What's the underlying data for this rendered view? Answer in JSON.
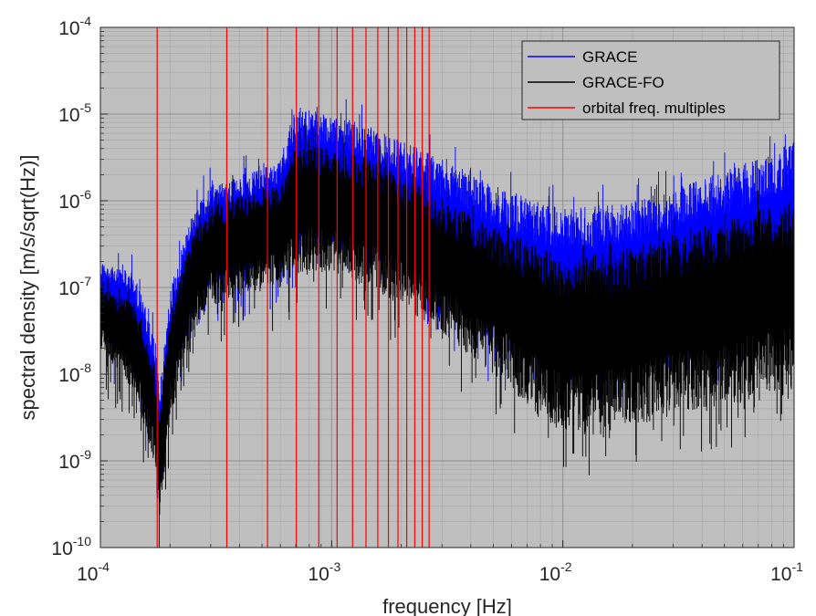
{
  "chart_data": {
    "type": "line",
    "xscale": "log",
    "yscale": "log",
    "xlim": [
      0.0001,
      0.1
    ],
    "ylim": [
      1e-10,
      0.0001
    ],
    "xlabel": "frequency [Hz]",
    "ylabel": "spectral density [m/s/sqrt(Hz)]",
    "grid": true,
    "background": "#bfbfbf",
    "legend_position": "top-right",
    "x_ticks": [
      {
        "mantissa": "10",
        "exp": "-4",
        "value": 0.0001
      },
      {
        "mantissa": "10",
        "exp": "-3",
        "value": 0.001
      },
      {
        "mantissa": "10",
        "exp": "-2",
        "value": 0.01
      },
      {
        "mantissa": "10",
        "exp": "-1",
        "value": 0.1
      }
    ],
    "y_ticks": [
      {
        "mantissa": "10",
        "exp": "-10",
        "value": 1e-10
      },
      {
        "mantissa": "10",
        "exp": "-9",
        "value": 1e-09
      },
      {
        "mantissa": "10",
        "exp": "-8",
        "value": 1e-08
      },
      {
        "mantissa": "10",
        "exp": "-7",
        "value": 1e-07
      },
      {
        "mantissa": "10",
        "exp": "-6",
        "value": 1e-06
      },
      {
        "mantissa": "10",
        "exp": "-5",
        "value": 1e-05
      },
      {
        "mantissa": "10",
        "exp": "-4",
        "value": 0.0001
      }
    ],
    "series": [
      {
        "name": "GRACE",
        "color": "#0000ff",
        "style": "noisy band",
        "x": [
          0.0001,
          0.00014,
          0.00017,
          0.00018,
          0.0002,
          0.00025,
          0.0003,
          0.0004,
          0.0006,
          0.0007,
          0.001,
          0.0015,
          0.002,
          0.003,
          0.005,
          0.008,
          0.01,
          0.015,
          0.02,
          0.04,
          0.07,
          0.1
        ],
        "upper": [
          2e-07,
          1.5e-07,
          3e-08,
          5e-09,
          1e-07,
          7e-07,
          1.5e-06,
          2e-06,
          3e-06,
          1.2e-05,
          1e-05,
          7e-06,
          5e-06,
          3e-06,
          1.5e-06,
          1e-06,
          8e-07,
          9e-07,
          1e-06,
          1.8e-06,
          3e-06,
          5e-06
        ],
        "lower": [
          3e-08,
          1e-08,
          2e-09,
          3e-10,
          5e-09,
          5e-08,
          1e-07,
          1.2e-07,
          2e-07,
          3e-07,
          3e-07,
          2e-07,
          1.5e-07,
          6e-08,
          2e-08,
          1e-08,
          8e-09,
          1e-08,
          1.2e-08,
          2e-08,
          3e-08,
          4e-08
        ]
      },
      {
        "name": "GRACE-FO",
        "color": "#000000",
        "style": "noisy band",
        "x": [
          0.0001,
          0.00014,
          0.00017,
          0.00018,
          0.0002,
          0.00025,
          0.0003,
          0.0004,
          0.0006,
          0.0007,
          0.001,
          0.0015,
          0.002,
          0.003,
          0.005,
          0.008,
          0.01,
          0.015,
          0.02,
          0.04,
          0.07,
          0.1
        ],
        "upper": [
          1e-07,
          7e-08,
          1.5e-08,
          3e-09,
          5e-08,
          4e-07,
          9e-07,
          1.2e-06,
          1.5e-06,
          5e-06,
          4e-06,
          3e-06,
          2e-06,
          1e-06,
          5e-07,
          3e-07,
          2e-07,
          2.5e-07,
          3e-07,
          5e-07,
          8e-07,
          1e-06
        ],
        "lower": [
          2e-08,
          6e-09,
          1e-09,
          2e-10,
          3e-09,
          3e-08,
          6e-08,
          8e-08,
          1e-07,
          1.5e-07,
          1.5e-07,
          1e-07,
          6e-08,
          3e-08,
          1e-08,
          3e-09,
          2e-09,
          2e-09,
          2.5e-09,
          4e-09,
          5e-09,
          6e-09
        ]
      },
      {
        "name": "orbital freq. multiples",
        "color": "#ff0000",
        "style": "vertical lines",
        "x": [
          0.000176,
          0.000352,
          0.000528,
          0.000704,
          0.00088,
          0.001056,
          0.001232,
          0.001408,
          0.001584,
          0.00176,
          0.001936,
          0.002112,
          0.002288,
          0.002464,
          0.00264
        ]
      }
    ]
  }
}
